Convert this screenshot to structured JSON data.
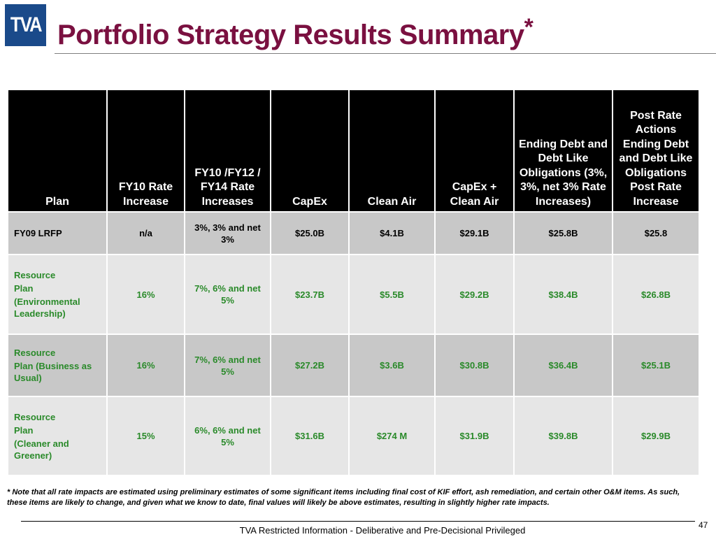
{
  "header": {
    "logo_text": "TVA",
    "title": "Portfolio Strategy Results Summary",
    "title_mark": "*"
  },
  "table": {
    "columns": [
      "Plan",
      "FY10 Rate Increase",
      "FY10 /FY12 / FY14 Rate Increases",
      "CapEx",
      "Clean Air",
      "CapEx + Clean Air",
      "Ending Debt and Debt Like Obligations (3%, 3%, net 3% Rate Increases)",
      "Post Rate Actions Ending Debt and Debt Like Obligations Post Rate Increase"
    ],
    "rows": [
      {
        "plan_lines": [
          "FY09 LRFP"
        ],
        "fy10_rate": "n/a",
        "fy10_12_14_rates": "3%, 3% and net 3%",
        "capex": "$25.0B",
        "clean_air": "$4.1B",
        "capex_clean_air": "$29.1B",
        "ending_debt": "$25.8B",
        "post_rate_debt": "$25.8"
      },
      {
        "plan_lines": [
          "Resource",
          "Plan",
          "(Environmental Leadership)"
        ],
        "fy10_rate": "16%",
        "fy10_12_14_rates": "7%,  6% and net 5%",
        "capex": "$23.7B",
        "clean_air": "$5.5B",
        "capex_clean_air": "$29.2B",
        "ending_debt": "$38.4B",
        "post_rate_debt": "$26.8B"
      },
      {
        "plan_lines": [
          "Resource",
          "Plan (Business as Usual)"
        ],
        "fy10_rate": "16%",
        "fy10_12_14_rates": "7%,  6% and net 5%",
        "capex": "$27.2B",
        "clean_air": "$3.6B",
        "capex_clean_air": "$30.8B",
        "ending_debt": "$36.4B",
        "post_rate_debt": "$25.1B"
      },
      {
        "plan_lines": [
          "Resource",
          "Plan",
          "(Cleaner and Greener)"
        ],
        "fy10_rate": "15%",
        "fy10_12_14_rates": "6%,  6% and net 5%",
        "capex": "$31.6B",
        "clean_air": "$274 M",
        "capex_clean_air": "$31.9B",
        "ending_debt": "$39.8B",
        "post_rate_debt": "$29.9B"
      }
    ]
  },
  "footnote": "* Note that all rate impacts are estimated using preliminary estimates of some significant items including final cost of KIF effort, ash remediation, and certain other O&M items.  As such, these items are likely to change, and given what we know to date, final values will likely be above estimates, resulting in slightly higher rate impacts.",
  "footer": {
    "text": "TVA Restricted Information - Deliberative and Pre-Decisional Privileged",
    "page_number": "47"
  },
  "colors": {
    "title": "#7a1040",
    "header_bg": "#000000",
    "row_dark": "#c8c8c8",
    "row_light": "#e6e6e6",
    "green_text": "#2a8a2a",
    "logo_bg": "#1a4a8a"
  }
}
